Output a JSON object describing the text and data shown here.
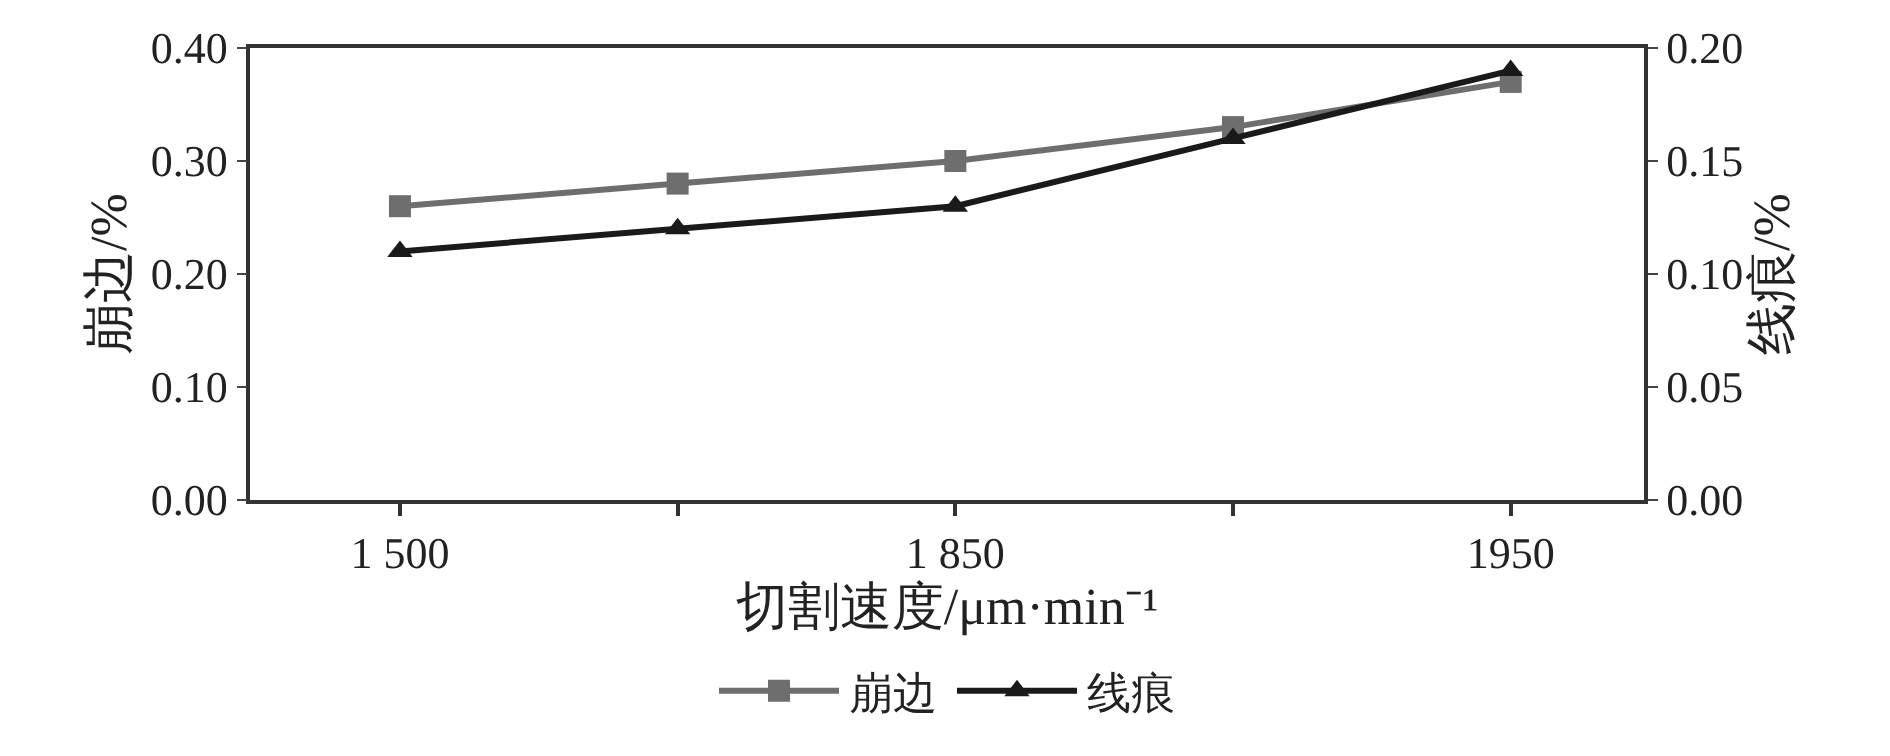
{
  "chart_data": {
    "type": "line",
    "xlabel": "切割速度/μm·min⁻¹",
    "ylabel": "崩边/%",
    "y2label": "线痕/%",
    "categories": [
      "1 500",
      null,
      "1 850",
      null,
      "1950"
    ],
    "series": [
      {
        "name": "崩边",
        "color": "#6e6e6e",
        "marker": "square",
        "values": [
          0.26,
          0.28,
          0.3,
          0.33,
          0.37
        ]
      },
      {
        "name": "线痕",
        "color": "#1a1a1a",
        "marker": "triangle",
        "axis": "y2",
        "values": [
          0.11,
          0.12,
          0.13,
          0.16,
          0.19
        ]
      }
    ],
    "ylim": [
      0,
      0.4
    ],
    "yticks": [
      {
        "value": 0,
        "label": "0.00"
      },
      {
        "value": 0.1,
        "label": "0.10"
      },
      {
        "value": 0.2,
        "label": "0.20"
      },
      {
        "value": 0.3,
        "label": "0.30"
      },
      {
        "value": 0.4,
        "label": "0.40"
      }
    ],
    "y2lim": [
      0,
      0.2
    ],
    "y2ticks": [
      {
        "value": 0,
        "label": "0.00"
      },
      {
        "value": 0.05,
        "label": "0.05"
      },
      {
        "value": 0.1,
        "label": "0.10"
      },
      {
        "value": 0.15,
        "label": "0.15"
      },
      {
        "value": 0.2,
        "label": "0.20"
      }
    ],
    "legend": "bottom",
    "line_style": "solid"
  }
}
